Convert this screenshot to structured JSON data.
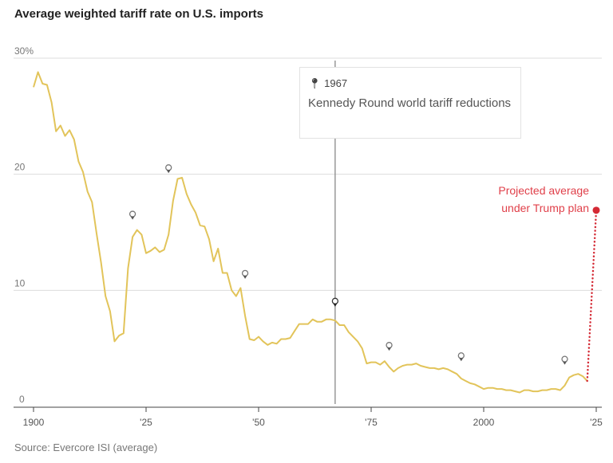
{
  "chart_data": {
    "type": "line",
    "title": "Average weighted tariff rate on U.S. imports",
    "source": "Source: Evercore ISI (average)",
    "xlim": [
      1900,
      2025
    ],
    "ylim": [
      0,
      30
    ],
    "x_ticks": [
      {
        "value": 1900,
        "label": "1900"
      },
      {
        "value": 1925,
        "label": "'25"
      },
      {
        "value": 1950,
        "label": "'50"
      },
      {
        "value": 1975,
        "label": "'75"
      },
      {
        "value": 2000,
        "label": "2000"
      },
      {
        "value": 2025,
        "label": "'25"
      }
    ],
    "y_ticks": [
      {
        "value": 0,
        "label": "0"
      },
      {
        "value": 10,
        "label": "10"
      },
      {
        "value": 20,
        "label": "20"
      },
      {
        "value": 30,
        "label": "30%"
      }
    ],
    "grid": true,
    "series": [
      {
        "name": "Average weighted tariff rate",
        "color": "#e2c45a",
        "start_year": 1900,
        "values": [
          27.5,
          28.8,
          27.8,
          27.7,
          26.2,
          23.7,
          24.2,
          23.3,
          23.8,
          23.0,
          21.1,
          20.2,
          18.5,
          17.6,
          14.9,
          12.4,
          9.5,
          8.2,
          5.6,
          6.1,
          6.3,
          11.9,
          14.6,
          15.2,
          14.8,
          13.2,
          13.4,
          13.7,
          13.3,
          13.5,
          14.8,
          17.7,
          19.6,
          19.7,
          18.3,
          17.4,
          16.7,
          15.6,
          15.5,
          14.4,
          12.5,
          13.6,
          11.5,
          11.5,
          10.0,
          9.5,
          10.2,
          7.8,
          5.8,
          5.7,
          6.0,
          5.6,
          5.3,
          5.5,
          5.4,
          5.8,
          5.8,
          5.9,
          6.5,
          7.1,
          7.1,
          7.1,
          7.5,
          7.3,
          7.3,
          7.5,
          7.5,
          7.4,
          7.0,
          7.0,
          6.4,
          6.0,
          5.6,
          5.0,
          3.7,
          3.8,
          3.8,
          3.6,
          3.9,
          3.4,
          3.0,
          3.3,
          3.5,
          3.6,
          3.6,
          3.7,
          3.5,
          3.4,
          3.3,
          3.3,
          3.2,
          3.3,
          3.2,
          3.0,
          2.8,
          2.4,
          2.2,
          2.0,
          1.9,
          1.7,
          1.5,
          1.6,
          1.6,
          1.5,
          1.5,
          1.4,
          1.4,
          1.3,
          1.2,
          1.4,
          1.4,
          1.3,
          1.3,
          1.4,
          1.4,
          1.5,
          1.5,
          1.4,
          1.8,
          2.5,
          2.7,
          2.8,
          2.6,
          2.2
        ]
      }
    ],
    "projection": {
      "from": [
        2023,
        2.2
      ],
      "to": [
        2025,
        16.9
      ],
      "color": "#d42a35",
      "label_line1": "Projected average",
      "label_line2": "under Trump plan"
    },
    "events": [
      {
        "year": 1922,
        "value": 16.3
      },
      {
        "year": 1930,
        "value": 20.3
      },
      {
        "year": 1947,
        "value": 11.2
      },
      {
        "year": 1967,
        "value": 8.8,
        "active": true
      },
      {
        "year": 1979,
        "value": 5.0
      },
      {
        "year": 1995,
        "value": 4.1
      },
      {
        "year": 2018,
        "value": 3.8
      }
    ],
    "tooltip": {
      "year": "1967",
      "text": "Kennedy Round world tariff reductions"
    }
  }
}
